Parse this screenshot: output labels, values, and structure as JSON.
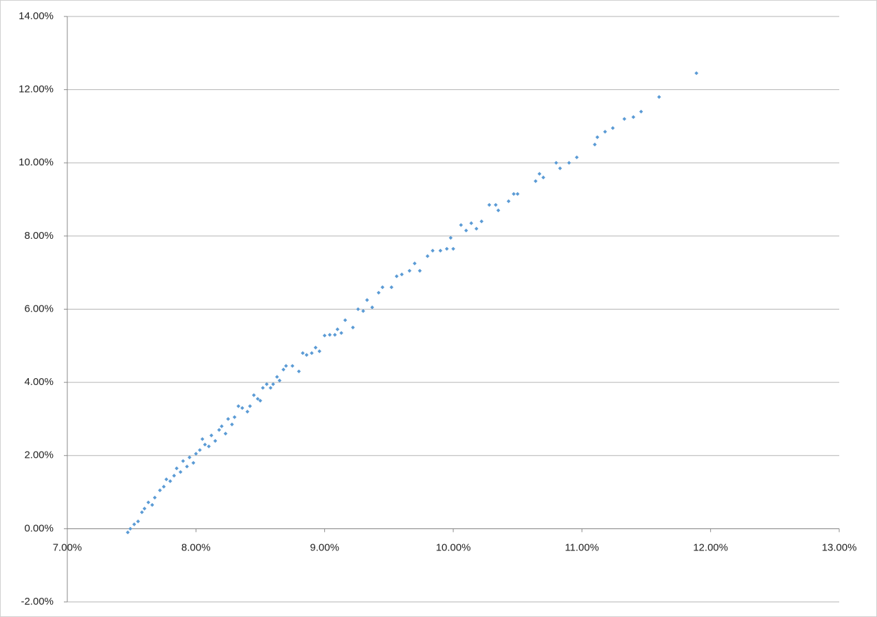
{
  "chart_data": {
    "type": "scatter",
    "x": [
      7.47,
      7.49,
      7.52,
      7.55,
      7.58,
      7.6,
      7.63,
      7.66,
      7.68,
      7.72,
      7.75,
      7.77,
      7.8,
      7.83,
      7.85,
      7.88,
      7.9,
      7.93,
      7.95,
      7.98,
      8.0,
      8.03,
      8.05,
      8.07,
      8.1,
      8.12,
      8.15,
      8.18,
      8.2,
      8.23,
      8.25,
      8.28,
      8.3,
      8.33,
      8.36,
      8.4,
      8.42,
      8.45,
      8.48,
      8.5,
      8.52,
      8.55,
      8.58,
      8.6,
      8.63,
      8.65,
      8.68,
      8.7,
      8.75,
      8.8,
      8.83,
      8.86,
      8.9,
      8.93,
      8.96,
      9.0,
      9.04,
      9.08,
      9.1,
      9.13,
      9.16,
      9.22,
      9.26,
      9.3,
      9.33,
      9.37,
      9.42,
      9.45,
      9.52,
      9.56,
      9.6,
      9.66,
      9.7,
      9.74,
      9.8,
      9.84,
      9.9,
      9.95,
      9.98,
      10.0,
      10.06,
      10.1,
      10.14,
      10.18,
      10.22,
      10.28,
      10.33,
      10.35,
      10.43,
      10.47,
      10.5,
      10.64,
      10.67,
      10.7,
      10.8,
      10.83,
      10.9,
      10.96,
      11.1,
      11.12,
      11.18,
      11.24,
      11.33,
      11.4,
      11.46,
      11.6,
      11.89
    ],
    "series": [
      {
        "color": "#5b9bd5",
        "values": [
          -0.1,
          0.0,
          0.12,
          0.2,
          0.45,
          0.55,
          0.72,
          0.65,
          0.85,
          1.05,
          1.15,
          1.35,
          1.3,
          1.45,
          1.65,
          1.55,
          1.85,
          1.7,
          1.95,
          1.8,
          2.05,
          2.15,
          2.45,
          2.3,
          2.25,
          2.55,
          2.4,
          2.7,
          2.8,
          2.6,
          3.0,
          2.85,
          3.05,
          3.35,
          3.3,
          3.2,
          3.35,
          3.65,
          3.55,
          3.5,
          3.85,
          3.95,
          3.85,
          3.95,
          4.15,
          4.05,
          4.35,
          4.45,
          4.45,
          4.3,
          4.8,
          4.75,
          4.8,
          4.95,
          4.85,
          5.28,
          5.3,
          5.3,
          5.45,
          5.35,
          5.7,
          5.5,
          6.0,
          5.95,
          6.25,
          6.05,
          6.45,
          6.6,
          6.6,
          6.9,
          6.95,
          7.05,
          7.25,
          7.05,
          7.45,
          7.6,
          7.6,
          7.65,
          7.95,
          7.65,
          8.3,
          8.15,
          8.35,
          8.2,
          8.4,
          8.85,
          8.85,
          8.7,
          8.95,
          9.15,
          9.15,
          9.5,
          9.7,
          9.6,
          10.0,
          9.85,
          10.0,
          10.15,
          10.5,
          10.7,
          10.85,
          10.95,
          11.2,
          11.25,
          11.4,
          11.8,
          12.45
        ]
      }
    ],
    "xlim": [
      7,
      13
    ],
    "xticks": [
      {
        "value": 7,
        "label": "7.00%"
      },
      {
        "value": 8,
        "label": "8.00%"
      },
      {
        "value": 9,
        "label": "9.00%"
      },
      {
        "value": 10,
        "label": "10.00%"
      },
      {
        "value": 11,
        "label": "11.00%"
      },
      {
        "value": 12,
        "label": "12.00%"
      },
      {
        "value": 13,
        "label": "13.00%"
      }
    ],
    "ylim": [
      -2,
      14
    ],
    "yticks": [
      {
        "value": -2,
        "label": "-2.00%"
      },
      {
        "value": 0,
        "label": "0.00%"
      },
      {
        "value": 2,
        "label": "2.00%"
      },
      {
        "value": 4,
        "label": "4.00%"
      },
      {
        "value": 6,
        "label": "6.00%"
      },
      {
        "value": 8,
        "label": "8.00%"
      },
      {
        "value": 10,
        "label": "10.00%"
      },
      {
        "value": 12,
        "label": "12.00%"
      },
      {
        "value": 14,
        "label": "14.00%"
      }
    ],
    "grid": true
  }
}
